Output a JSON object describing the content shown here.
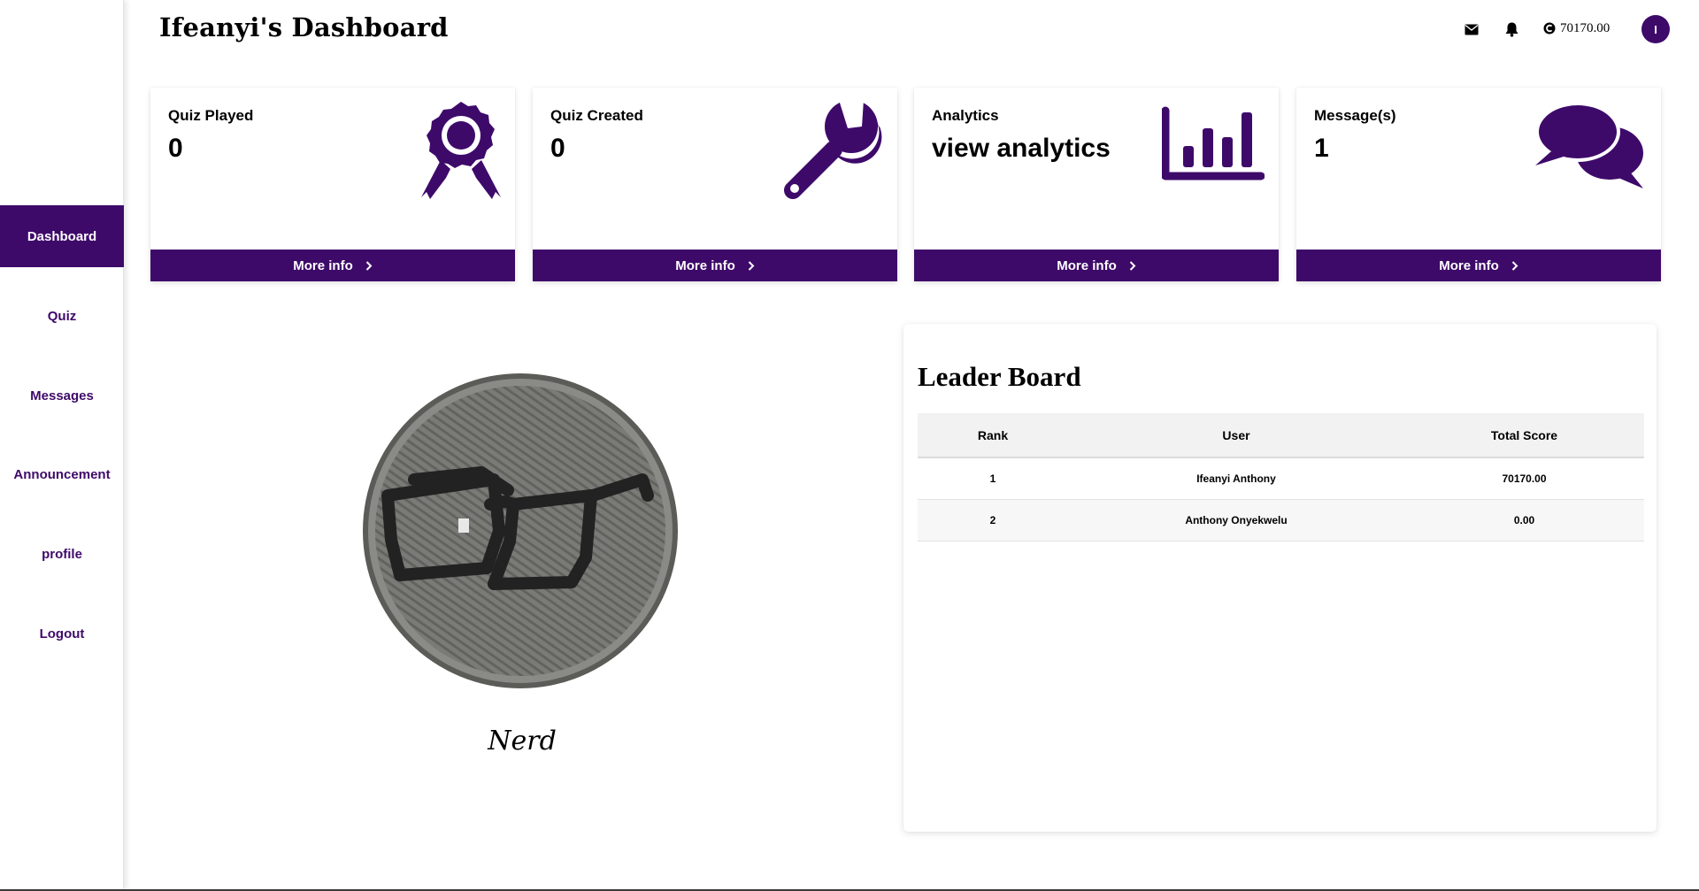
{
  "header": {
    "title": "Ifeanyi's Dashboard",
    "balance": "70170.00",
    "avatar_initial": "I",
    "icons": [
      "envelope-icon",
      "bell-icon",
      "coin-icon"
    ]
  },
  "sidebar": {
    "items": [
      {
        "label": "Dashboard",
        "active": true
      },
      {
        "label": "Quiz",
        "active": false
      },
      {
        "label": "Messages",
        "active": false
      },
      {
        "label": "Announcement",
        "active": false
      },
      {
        "label": "profile",
        "active": false
      },
      {
        "label": "Logout",
        "active": false
      }
    ]
  },
  "cards": [
    {
      "label": "Quiz Played",
      "value": "0",
      "footer": "More info",
      "icon": "award-ribbon-icon"
    },
    {
      "label": "Quiz Created",
      "value": "0",
      "footer": "More info",
      "icon": "wrench-icon"
    },
    {
      "label": "Analytics",
      "value": "view analytics",
      "footer": "More info",
      "icon": "bar-chart-icon"
    },
    {
      "label": "Message(s)",
      "value": "1",
      "footer": "More info",
      "icon": "chat-bubbles-icon"
    }
  ],
  "badge": {
    "name": "Nerd",
    "image": "embroidered-glasses-patch"
  },
  "leaderboard": {
    "title": "Leader Board",
    "columns": [
      "Rank",
      "User",
      "Total Score"
    ],
    "rows": [
      {
        "rank": "1",
        "user": "Ifeanyi Anthony",
        "score": "70170.00"
      },
      {
        "rank": "2",
        "user": "Anthony Onyekwelu",
        "score": "0.00"
      }
    ]
  },
  "colors": {
    "brand": "#3e0a6a",
    "badge_fill": "#7a7b77",
    "table_header": "#f2f2f2"
  }
}
